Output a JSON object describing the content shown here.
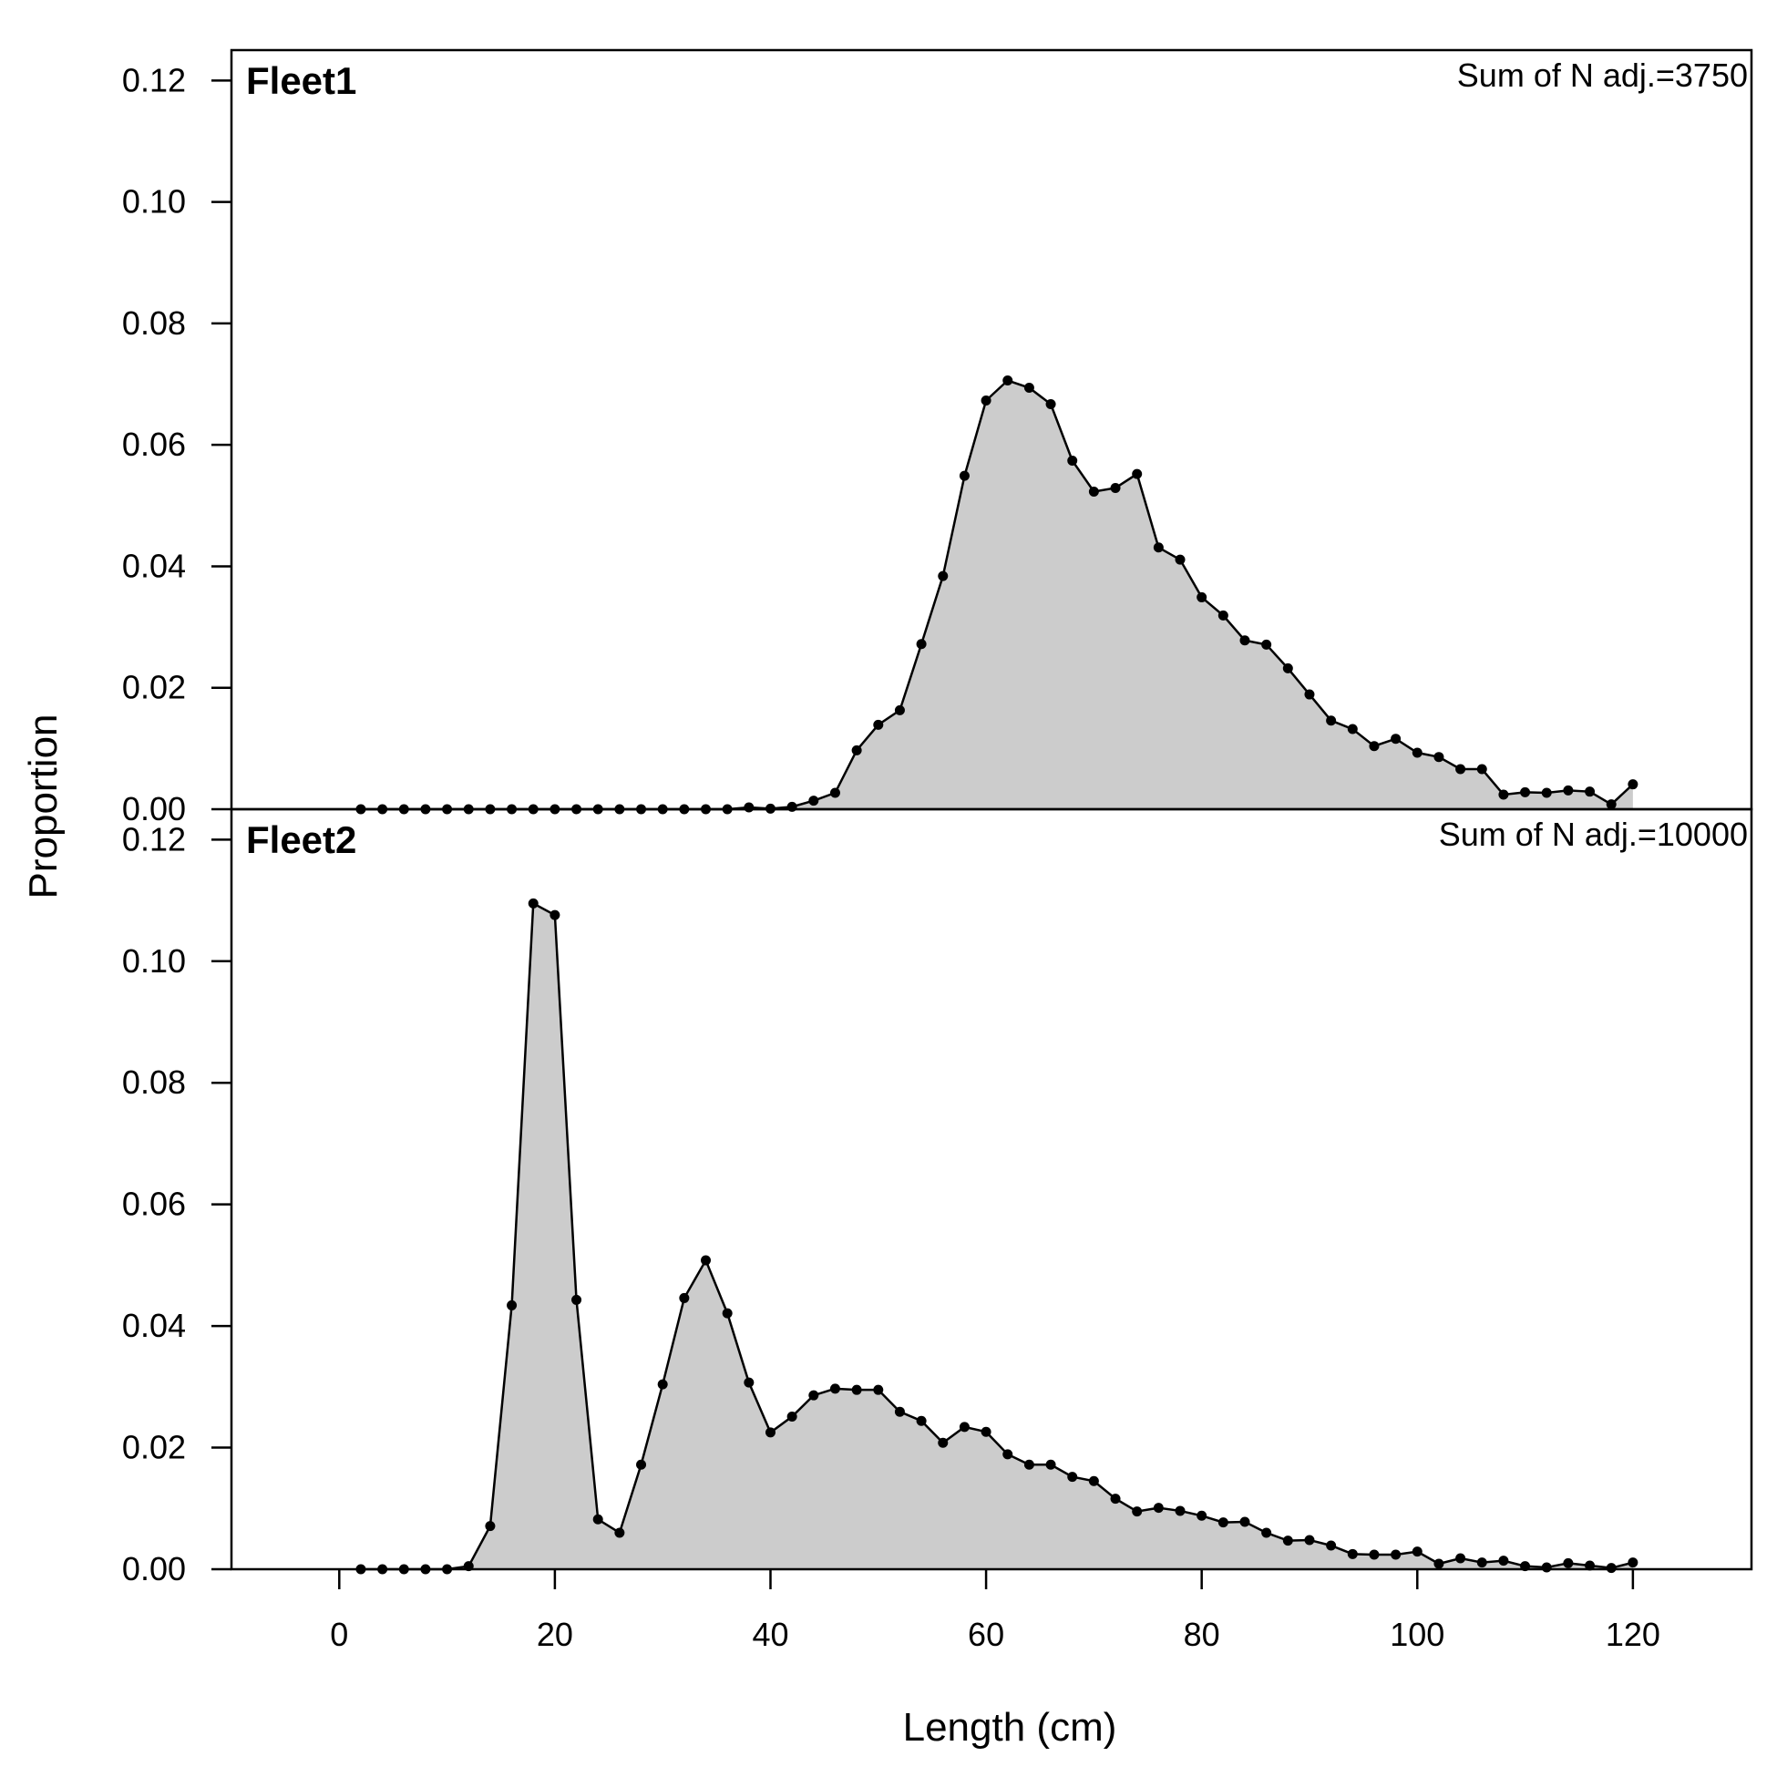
{
  "chart_data": [
    {
      "type": "area",
      "title": "Fleet1",
      "annotation": "Sum of N adj.=3750",
      "xlim": [
        -10,
        131
      ],
      "ylim": [
        0,
        0.125
      ],
      "yticks": [
        "0.00",
        "0.02",
        "0.04",
        "0.06",
        "0.08",
        "0.10",
        "0.12"
      ],
      "fill_color": "#cccccc",
      "x": [
        2,
        4,
        6,
        8,
        10,
        12,
        14,
        16,
        18,
        20,
        22,
        24,
        26,
        28,
        30,
        32,
        34,
        36,
        38,
        40,
        42,
        44,
        46,
        48,
        50,
        52,
        54,
        56,
        58,
        60,
        62,
        64,
        66,
        68,
        70,
        72,
        74,
        76,
        78,
        80,
        82,
        84,
        86,
        88,
        90,
        92,
        94,
        96,
        98,
        100,
        102,
        104,
        106,
        108,
        110,
        112,
        114,
        116,
        118,
        120
      ],
      "y": [
        0,
        0,
        0,
        0,
        0,
        0,
        0,
        0,
        0,
        0,
        0,
        0,
        0,
        0,
        0,
        0,
        0,
        0,
        0.0003,
        0.0001,
        0.0004,
        0.0014,
        0.0027,
        0.0097,
        0.0139,
        0.0163,
        0.0272,
        0.0384,
        0.0549,
        0.0673,
        0.0706,
        0.0694,
        0.0667,
        0.0574,
        0.0523,
        0.0529,
        0.0552,
        0.0431,
        0.0411,
        0.0349,
        0.0319,
        0.0278,
        0.0271,
        0.0232,
        0.0189,
        0.0146,
        0.0132,
        0.0104,
        0.0116,
        0.0093,
        0.0086,
        0.0066,
        0.0066,
        0.0024,
        0.0028,
        0.0027,
        0.0031,
        0.0029,
        0.0008,
        0.0041
      ]
    },
    {
      "type": "area",
      "title": "Fleet2",
      "annotation": "Sum of N adj.=10000",
      "xlim": [
        -10,
        131
      ],
      "ylim": [
        0,
        0.125
      ],
      "yticks": [
        "0.00",
        "0.02",
        "0.04",
        "0.06",
        "0.08",
        "0.10",
        "0.12"
      ],
      "xticks": [
        "0",
        "20",
        "40",
        "60",
        "80",
        "100",
        "120"
      ],
      "xlabel": "Length (cm)",
      "fill_color": "#cccccc",
      "x": [
        2,
        4,
        6,
        8,
        10,
        12,
        14,
        16,
        18,
        20,
        22,
        24,
        26,
        28,
        30,
        32,
        34,
        36,
        38,
        40,
        42,
        44,
        46,
        48,
        50,
        52,
        54,
        56,
        58,
        60,
        62,
        64,
        66,
        68,
        70,
        72,
        74,
        76,
        78,
        80,
        82,
        84,
        86,
        88,
        90,
        92,
        94,
        96,
        98,
        100,
        102,
        104,
        106,
        108,
        110,
        112,
        114,
        116,
        118,
        120
      ],
      "y": [
        0,
        0,
        0,
        0,
        0,
        0.0005,
        0.0071,
        0.0434,
        0.1095,
        0.1076,
        0.0443,
        0.0082,
        0.006,
        0.0172,
        0.0304,
        0.0446,
        0.0508,
        0.0421,
        0.0307,
        0.0225,
        0.0251,
        0.0286,
        0.0297,
        0.0295,
        0.0295,
        0.0259,
        0.0244,
        0.0208,
        0.0234,
        0.0226,
        0.0189,
        0.0172,
        0.0172,
        0.0152,
        0.0145,
        0.0116,
        0.0095,
        0.0101,
        0.0096,
        0.0088,
        0.0077,
        0.0078,
        0.006,
        0.0047,
        0.0048,
        0.0039,
        0.0025,
        0.0024,
        0.0024,
        0.0029,
        0.0009,
        0.0018,
        0.0011,
        0.0014,
        0.0005,
        0.0003,
        0.001,
        0.0006,
        0.0002,
        0.0011
      ]
    }
  ],
  "ylabel": "Proportion"
}
